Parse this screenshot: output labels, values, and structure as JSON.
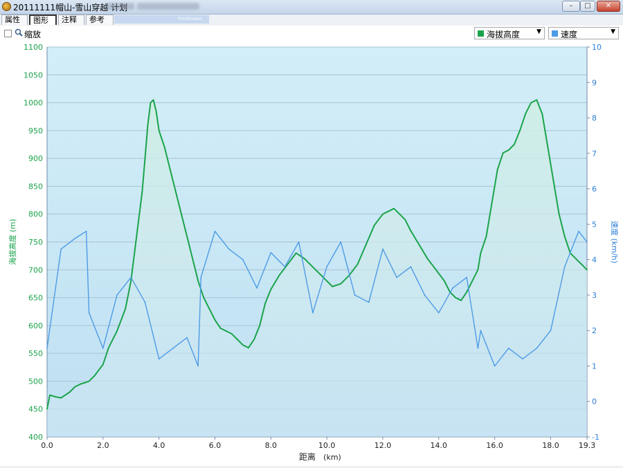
{
  "window": {
    "title": "20111111帽山-雪山穿越 计划",
    "minimize_glyph": "–",
    "maximize_glyph": "□",
    "close_glyph": "✕"
  },
  "tabs": [
    {
      "label": "属性",
      "active": false
    },
    {
      "label": "图形",
      "active": true
    },
    {
      "label": "注释",
      "active": false
    },
    {
      "label": "参考",
      "active": false
    }
  ],
  "tab_strip_text": "PrintScreen",
  "toolbar": {
    "zoom_label": "缩放",
    "zoom_checked": false,
    "primary_select": {
      "label": "海拔高度",
      "color": "#1aa34a"
    },
    "secondary_select": {
      "label": "速度",
      "color": "#4d9be6"
    }
  },
  "colors": {
    "elevation": "#1aa34a",
    "speed": "#4d9be6",
    "left_axis_text": "#1aa34a",
    "right_axis_text": "#2e7fd6"
  },
  "chart_data": {
    "type": "line",
    "xlabel": "距离",
    "xunit": "(km)",
    "ylabel_left": "海拔高度 (m)",
    "ylabel_right": "速度 (km/h)",
    "xlim": [
      0,
      19.3
    ],
    "ylim_left": [
      400,
      1100
    ],
    "ylim_right": [
      -1,
      10
    ],
    "x_ticks": [
      "0.0",
      "2.0",
      "4.0",
      "6.0",
      "8.0",
      "10.0",
      "12.0",
      "14.0",
      "16.0",
      "18.0",
      "19.3"
    ],
    "y_ticks_left": [
      "400",
      "450",
      "500",
      "550",
      "600",
      "650",
      "700",
      "750",
      "800",
      "850",
      "900",
      "950",
      "1000",
      "1050",
      "1100"
    ],
    "y_ticks_right": [
      "-1",
      "0",
      "1",
      "2",
      "3",
      "4",
      "5",
      "6",
      "7",
      "8",
      "9",
      "10"
    ],
    "grid": true,
    "series": [
      {
        "name": "海拔高度",
        "axis": "left",
        "x": [
          0.0,
          0.1,
          0.3,
          0.5,
          0.8,
          1.0,
          1.2,
          1.4,
          1.5,
          1.7,
          2.0,
          2.2,
          2.5,
          2.8,
          3.0,
          3.2,
          3.4,
          3.5,
          3.6,
          3.7,
          3.8,
          3.9,
          4.0,
          4.2,
          4.4,
          4.6,
          4.8,
          5.0,
          5.2,
          5.4,
          5.6,
          5.8,
          6.0,
          6.2,
          6.4,
          6.6,
          6.8,
          7.0,
          7.2,
          7.4,
          7.6,
          7.8,
          8.0,
          8.3,
          8.6,
          8.9,
          9.2,
          9.5,
          9.8,
          10.0,
          10.2,
          10.5,
          10.8,
          11.1,
          11.4,
          11.7,
          12.0,
          12.2,
          12.4,
          12.6,
          12.8,
          13.0,
          13.3,
          13.6,
          13.9,
          14.2,
          14.4,
          14.6,
          14.8,
          15.0,
          15.2,
          15.4,
          15.5,
          15.7,
          15.9,
          16.1,
          16.3,
          16.5,
          16.7,
          16.9,
          17.1,
          17.3,
          17.5,
          17.7,
          17.9,
          18.1,
          18.3,
          18.5,
          18.7,
          18.9,
          19.1,
          19.3
        ],
        "y": [
          450,
          475,
          472,
          470,
          480,
          490,
          495,
          498,
          500,
          510,
          530,
          560,
          590,
          630,
          680,
          760,
          840,
          900,
          960,
          1000,
          1005,
          985,
          950,
          920,
          880,
          840,
          800,
          760,
          720,
          680,
          650,
          630,
          610,
          595,
          590,
          585,
          575,
          565,
          560,
          575,
          600,
          640,
          665,
          690,
          710,
          730,
          720,
          705,
          690,
          680,
          670,
          675,
          690,
          710,
          745,
          780,
          800,
          805,
          810,
          800,
          790,
          770,
          745,
          720,
          700,
          680,
          660,
          650,
          645,
          660,
          680,
          700,
          730,
          760,
          820,
          880,
          910,
          915,
          925,
          950,
          980,
          1000,
          1005,
          980,
          920,
          860,
          800,
          760,
          730,
          720,
          710,
          700
        ],
        "color": "#1aa34a"
      },
      {
        "name": "速度",
        "axis": "right",
        "x": [
          0.0,
          0.5,
          1.0,
          1.4,
          1.5,
          2.0,
          2.5,
          3.0,
          3.5,
          4.0,
          4.5,
          5.0,
          5.4,
          5.5,
          6.0,
          6.5,
          7.0,
          7.5,
          8.0,
          8.5,
          9.0,
          9.5,
          10.0,
          10.5,
          11.0,
          11.5,
          12.0,
          12.5,
          13.0,
          13.5,
          14.0,
          14.5,
          15.0,
          15.4,
          15.5,
          16.0,
          16.5,
          17.0,
          17.5,
          18.0,
          18.5,
          19.0,
          19.3
        ],
        "y": [
          1.5,
          4.3,
          4.6,
          4.8,
          2.5,
          1.5,
          3.0,
          3.5,
          2.8,
          1.2,
          1.5,
          1.8,
          1.0,
          3.5,
          4.8,
          4.3,
          4.0,
          3.2,
          4.2,
          3.8,
          4.5,
          2.5,
          3.8,
          4.5,
          3.0,
          2.8,
          4.3,
          3.5,
          3.8,
          3.0,
          2.5,
          3.2,
          3.5,
          1.5,
          2.0,
          1.0,
          1.5,
          1.2,
          1.5,
          2.0,
          3.8,
          4.8,
          4.5
        ],
        "color": "#4d9be6"
      }
    ]
  }
}
